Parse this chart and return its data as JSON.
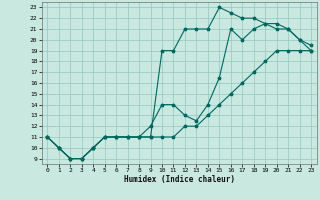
{
  "xlabel": "Humidex (Indice chaleur)",
  "background_color": "#c8e8e0",
  "grid_color": "#90c8c0",
  "line_color": "#006860",
  "xlim": [
    -0.5,
    23.5
  ],
  "ylim": [
    8.5,
    23.5
  ],
  "xticks": [
    0,
    1,
    2,
    3,
    4,
    5,
    6,
    7,
    8,
    9,
    10,
    11,
    12,
    13,
    14,
    15,
    16,
    17,
    18,
    19,
    20,
    21,
    22,
    23
  ],
  "yticks": [
    9,
    10,
    11,
    12,
    13,
    14,
    15,
    16,
    17,
    18,
    19,
    20,
    21,
    22,
    23
  ],
  "line1_x": [
    0,
    1,
    2,
    3,
    4,
    5,
    6,
    7,
    8,
    9,
    10,
    11,
    12,
    13,
    14,
    15,
    16,
    17,
    18,
    19,
    20,
    21,
    22,
    23
  ],
  "line1_y": [
    11,
    10,
    9,
    9,
    10,
    11,
    11,
    11,
    11,
    11,
    11,
    11,
    12,
    12,
    13,
    14,
    15,
    16,
    17,
    18,
    19,
    19,
    19,
    19
  ],
  "line2_x": [
    0,
    1,
    2,
    3,
    4,
    5,
    6,
    7,
    8,
    9,
    10,
    11,
    12,
    13,
    14,
    15,
    16,
    17,
    18,
    19,
    20,
    21,
    22,
    23
  ],
  "line2_y": [
    11,
    10,
    9,
    9,
    10,
    11,
    11,
    11,
    11,
    11,
    19,
    19,
    21,
    21,
    21,
    23,
    22.5,
    22,
    22,
    21.5,
    21,
    21,
    20,
    19
  ],
  "line3_x": [
    0,
    1,
    2,
    3,
    4,
    5,
    6,
    7,
    8,
    9,
    10,
    11,
    12,
    13,
    14,
    15,
    16,
    17,
    18,
    19,
    20,
    21,
    22,
    23
  ],
  "line3_y": [
    11,
    10,
    9,
    9,
    10,
    11,
    11,
    11,
    11,
    12,
    14,
    14,
    13,
    12.5,
    14,
    16.5,
    21,
    20,
    21,
    21.5,
    21.5,
    21,
    20,
    19.5
  ]
}
